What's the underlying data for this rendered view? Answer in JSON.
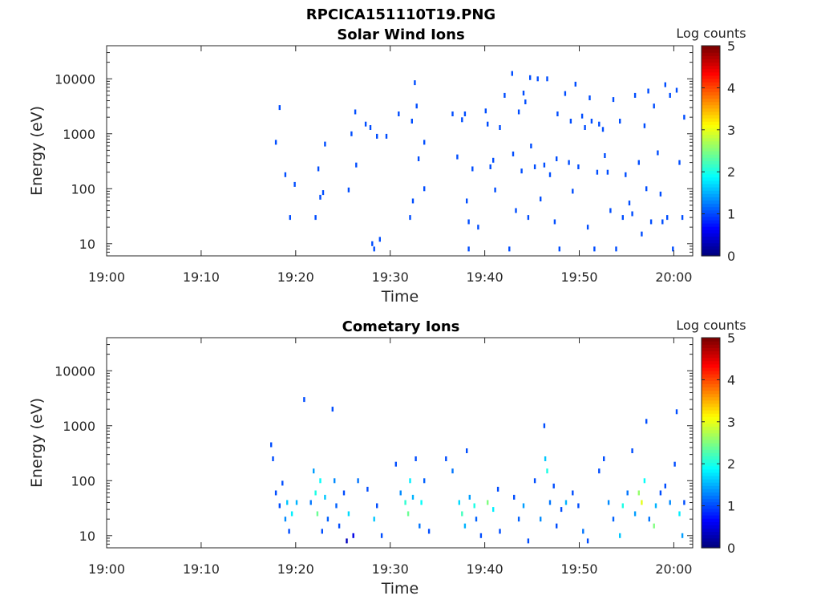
{
  "figure": {
    "filename": "RPCICA151110T19.PNG"
  },
  "chart_data": [
    {
      "type": "heatmap",
      "title": "Solar Wind Ions",
      "xlabel": "Time",
      "ylabel": "Energy (eV)",
      "x_ticks": [
        "19:00",
        "19:10",
        "19:20",
        "19:30",
        "19:40",
        "19:50",
        "20:00"
      ],
      "x_range_minutes_after_19_00": [
        0,
        62
      ],
      "y_scale": "log",
      "y_ticks": [
        "10",
        "100",
        "1000",
        "10000"
      ],
      "y_range": [
        6,
        40000
      ],
      "colorbar": {
        "label": "Log counts",
        "range": [
          0,
          5
        ],
        "ticks": [
          "0",
          "1",
          "2",
          "3",
          "4",
          "5"
        ],
        "colormap": "jet"
      },
      "cells": [
        [
          17.8,
          700,
          1.0
        ],
        [
          18.2,
          3000,
          1.0
        ],
        [
          18.8,
          180,
          1.0
        ],
        [
          19.3,
          30,
          1.0
        ],
        [
          19.8,
          120,
          1.0
        ],
        [
          22.0,
          30,
          1.0
        ],
        [
          22.3,
          230,
          1.0
        ],
        [
          22.5,
          70,
          1.0
        ],
        [
          22.8,
          85,
          1.0
        ],
        [
          23.0,
          650,
          1.0
        ],
        [
          25.5,
          95,
          1.0
        ],
        [
          25.8,
          1000,
          1.0
        ],
        [
          26.2,
          2500,
          1.0
        ],
        [
          26.3,
          270,
          1.0
        ],
        [
          27.3,
          1500,
          1.0
        ],
        [
          27.8,
          1300,
          1.0
        ],
        [
          28.0,
          10,
          1.0
        ],
        [
          28.2,
          8,
          1.0
        ],
        [
          28.5,
          900,
          1.0
        ],
        [
          28.8,
          12,
          1.0
        ],
        [
          29.5,
          900,
          1.0
        ],
        [
          30.8,
          2300,
          1.0
        ],
        [
          32.0,
          30,
          1.0
        ],
        [
          32.2,
          1700,
          1.0
        ],
        [
          32.3,
          60,
          1.0
        ],
        [
          32.5,
          8500,
          1.0
        ],
        [
          32.7,
          3200,
          1.0
        ],
        [
          32.9,
          350,
          1.0
        ],
        [
          33.5,
          100,
          1.0
        ],
        [
          33.5,
          700,
          1.0
        ],
        [
          36.5,
          2300,
          1.0
        ],
        [
          37.0,
          380,
          1.0
        ],
        [
          37.5,
          1800,
          1.0
        ],
        [
          37.8,
          2300,
          1.0
        ],
        [
          38.0,
          60,
          1.0
        ],
        [
          38.2,
          25,
          1.0
        ],
        [
          38.2,
          8,
          1.0
        ],
        [
          38.6,
          230,
          1.0
        ],
        [
          39.2,
          20,
          1.0
        ],
        [
          40.0,
          2600,
          1.0
        ],
        [
          40.2,
          1500,
          1.0
        ],
        [
          40.5,
          250,
          1.0
        ],
        [
          40.8,
          330,
          1.0
        ],
        [
          41.0,
          95,
          1.0
        ],
        [
          41.5,
          1300,
          1.0
        ],
        [
          42.0,
          5000,
          1.0
        ],
        [
          42.5,
          8,
          1.0
        ],
        [
          42.8,
          12500,
          1.0
        ],
        [
          42.9,
          430,
          1.0
        ],
        [
          43.2,
          40,
          1.0
        ],
        [
          43.5,
          2500,
          1.0
        ],
        [
          43.8,
          210,
          1.0
        ],
        [
          44.0,
          5500,
          1.0
        ],
        [
          44.2,
          3800,
          1.0
        ],
        [
          44.5,
          30,
          1.0
        ],
        [
          44.7,
          10500,
          1.0
        ],
        [
          44.8,
          600,
          1.0
        ],
        [
          45.2,
          250,
          1.0
        ],
        [
          45.5,
          10000,
          1.0
        ],
        [
          45.8,
          65,
          1.0
        ],
        [
          46.2,
          270,
          1.0
        ],
        [
          46.5,
          10000,
          1.0
        ],
        [
          46.8,
          180,
          1.0
        ],
        [
          47.3,
          25,
          1.0
        ],
        [
          47.5,
          350,
          1.0
        ],
        [
          47.6,
          2300,
          1.0
        ],
        [
          47.8,
          8,
          1.0
        ],
        [
          48.4,
          5400,
          1.0
        ],
        [
          48.8,
          300,
          1.0
        ],
        [
          49.0,
          1700,
          1.0
        ],
        [
          49.2,
          90,
          1.0
        ],
        [
          49.5,
          8000,
          1.0
        ],
        [
          49.8,
          250,
          1.0
        ],
        [
          50.2,
          2100,
          1.0
        ],
        [
          50.5,
          1300,
          1.0
        ],
        [
          50.8,
          20,
          1.0
        ],
        [
          51.0,
          4500,
          1.0
        ],
        [
          51.2,
          1700,
          1.0
        ],
        [
          51.5,
          8,
          1.0
        ],
        [
          51.8,
          200,
          1.0
        ],
        [
          52.0,
          1500,
          1.0
        ],
        [
          52.4,
          1200,
          1.0
        ],
        [
          52.6,
          400,
          1.0
        ],
        [
          52.9,
          200,
          1.0
        ],
        [
          53.2,
          40,
          1.0
        ],
        [
          53.5,
          4200,
          1.0
        ],
        [
          53.8,
          8,
          1.0
        ],
        [
          54.2,
          1700,
          1.0
        ],
        [
          54.5,
          30,
          1.0
        ],
        [
          54.8,
          180,
          1.0
        ],
        [
          55.2,
          55,
          1.0
        ],
        [
          55.5,
          35,
          1.0
        ],
        [
          55.8,
          5000,
          1.0
        ],
        [
          56.2,
          300,
          1.0
        ],
        [
          56.5,
          15,
          1.0
        ],
        [
          56.8,
          1400,
          1.0
        ],
        [
          57.0,
          100,
          1.0
        ],
        [
          57.2,
          6000,
          1.0
        ],
        [
          57.5,
          25,
          1.0
        ],
        [
          57.8,
          3200,
          1.0
        ],
        [
          58.2,
          450,
          1.0
        ],
        [
          58.5,
          80,
          1.0
        ],
        [
          58.7,
          25,
          1.0
        ],
        [
          59.0,
          7800,
          1.0
        ],
        [
          59.2,
          30,
          1.0
        ],
        [
          59.5,
          5000,
          1.0
        ],
        [
          59.8,
          8,
          1.0
        ],
        [
          60.2,
          6200,
          1.0
        ],
        [
          60.5,
          300,
          1.0
        ],
        [
          60.8,
          30,
          1.0
        ],
        [
          61.0,
          2000,
          1.0
        ]
      ]
    },
    {
      "type": "heatmap",
      "title": "Cometary Ions",
      "xlabel": "Time",
      "ylabel": "Energy (eV)",
      "x_ticks": [
        "19:00",
        "19:10",
        "19:20",
        "19:30",
        "19:40",
        "19:50",
        "20:00"
      ],
      "x_range_minutes_after_19_00": [
        0,
        62
      ],
      "y_scale": "log",
      "y_ticks": [
        "10",
        "100",
        "1000",
        "10000"
      ],
      "y_range": [
        6,
        40000
      ],
      "colorbar": {
        "label": "Log counts",
        "range": [
          0,
          5
        ],
        "ticks": [
          "0",
          "1",
          "2",
          "3",
          "4",
          "5"
        ],
        "colormap": "jet"
      },
      "cells": [
        [
          17.3,
          450,
          1.0
        ],
        [
          17.5,
          250,
          1.0
        ],
        [
          17.8,
          60,
          1.0
        ],
        [
          18.2,
          35,
          1.0
        ],
        [
          18.5,
          90,
          1.0
        ],
        [
          18.8,
          20,
          1.3
        ],
        [
          19.0,
          40,
          1.6
        ],
        [
          19.2,
          12,
          1.0
        ],
        [
          19.5,
          25,
          1.8
        ],
        [
          20.0,
          40,
          1.5
        ],
        [
          20.8,
          3000,
          1.0
        ],
        [
          21.5,
          40,
          1.2
        ],
        [
          21.8,
          150,
          1.4
        ],
        [
          22.0,
          60,
          2.0
        ],
        [
          22.2,
          25,
          2.4
        ],
        [
          22.5,
          100,
          1.9
        ],
        [
          22.7,
          12,
          1.0
        ],
        [
          23.0,
          50,
          1.6
        ],
        [
          23.3,
          20,
          1.1
        ],
        [
          23.8,
          2000,
          1.0
        ],
        [
          24.0,
          100,
          1.3
        ],
        [
          24.2,
          35,
          1.1
        ],
        [
          24.5,
          15,
          1.0
        ],
        [
          25.0,
          60,
          1.0
        ],
        [
          25.3,
          8,
          0.3
        ],
        [
          25.5,
          25,
          1.7
        ],
        [
          26.0,
          10,
          0.5
        ],
        [
          26.5,
          100,
          1.2
        ],
        [
          27.5,
          70,
          1.0
        ],
        [
          28.2,
          20,
          1.6
        ],
        [
          28.5,
          35,
          1.0
        ],
        [
          29.0,
          10,
          1.0
        ],
        [
          30.5,
          200,
          1.0
        ],
        [
          31.0,
          60,
          1.3
        ],
        [
          31.5,
          40,
          2.1
        ],
        [
          31.8,
          25,
          2.4
        ],
        [
          32.0,
          100,
          1.8
        ],
        [
          32.3,
          50,
          1.5
        ],
        [
          32.6,
          250,
          1.0
        ],
        [
          33.0,
          15,
          1.2
        ],
        [
          33.2,
          40,
          1.9
        ],
        [
          33.5,
          100,
          1.1
        ],
        [
          34.0,
          12,
          1.0
        ],
        [
          35.8,
          250,
          1.0
        ],
        [
          36.5,
          150,
          1.2
        ],
        [
          37.2,
          40,
          1.7
        ],
        [
          37.5,
          25,
          2.2
        ],
        [
          37.8,
          15,
          1.5
        ],
        [
          38.0,
          350,
          1.0
        ],
        [
          38.3,
          50,
          1.4
        ],
        [
          38.8,
          35,
          2.0
        ],
        [
          39.0,
          20,
          1.1
        ],
        [
          39.5,
          10,
          1.0
        ],
        [
          40.2,
          40,
          2.5
        ],
        [
          40.8,
          30,
          1.8
        ],
        [
          41.3,
          70,
          1.0
        ],
        [
          41.5,
          12,
          1.0
        ],
        [
          43.0,
          50,
          1.0
        ],
        [
          43.5,
          20,
          1.1
        ],
        [
          44.0,
          35,
          1.4
        ],
        [
          44.5,
          8,
          1.0
        ],
        [
          45.2,
          100,
          1.0
        ],
        [
          45.8,
          20,
          1.3
        ],
        [
          46.2,
          1000,
          1.0
        ],
        [
          46.3,
          250,
          1.6
        ],
        [
          46.5,
          150,
          2.0
        ],
        [
          46.8,
          40,
          1.2
        ],
        [
          47.2,
          80,
          1.0
        ],
        [
          47.5,
          15,
          1.0
        ],
        [
          48.0,
          30,
          1.0
        ],
        [
          48.5,
          40,
          1.5
        ],
        [
          49.2,
          60,
          1.0
        ],
        [
          49.8,
          35,
          1.0
        ],
        [
          50.3,
          12,
          1.2
        ],
        [
          50.8,
          8,
          1.0
        ],
        [
          52.0,
          150,
          1.0
        ],
        [
          52.5,
          250,
          1.0
        ],
        [
          53.0,
          40,
          1.3
        ],
        [
          53.5,
          20,
          1.1
        ],
        [
          54.2,
          10,
          1.6
        ],
        [
          54.5,
          35,
          2.0
        ],
        [
          55.0,
          60,
          1.2
        ],
        [
          55.5,
          350,
          1.0
        ],
        [
          55.8,
          25,
          1.4
        ],
        [
          56.2,
          60,
          2.6
        ],
        [
          56.5,
          40,
          3.0
        ],
        [
          56.8,
          100,
          1.9
        ],
        [
          57.0,
          1200,
          1.0
        ],
        [
          57.3,
          20,
          1.2
        ],
        [
          57.8,
          15,
          2.5
        ],
        [
          58.0,
          35,
          1.5
        ],
        [
          58.5,
          60,
          1.0
        ],
        [
          59.0,
          80,
          1.0
        ],
        [
          59.5,
          40,
          1.3
        ],
        [
          60.0,
          200,
          1.0
        ],
        [
          60.2,
          1800,
          1.0
        ],
        [
          60.5,
          25,
          1.8
        ],
        [
          60.8,
          10,
          1.4
        ],
        [
          61.0,
          40,
          1.0
        ]
      ]
    }
  ]
}
